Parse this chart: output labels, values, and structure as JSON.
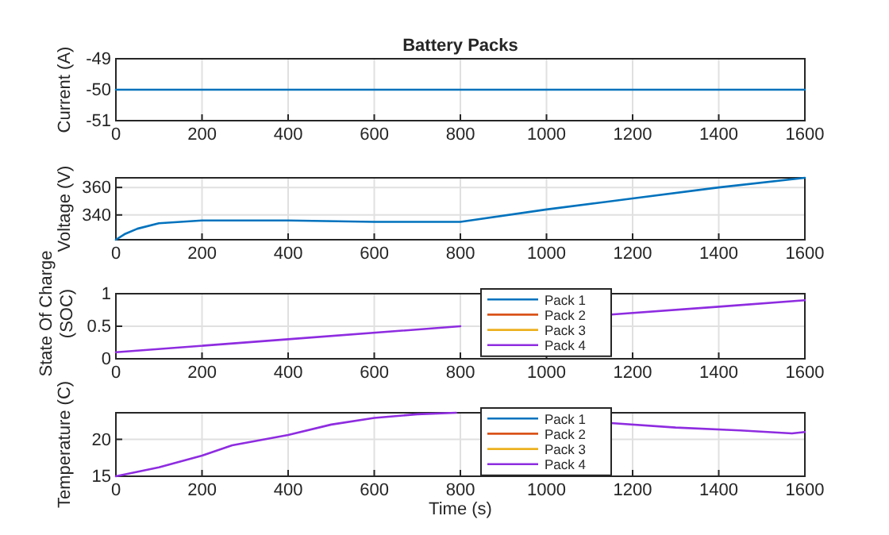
{
  "chart_data": [
    {
      "type": "line",
      "title": "Battery Packs",
      "ylabel": "Current (A)",
      "x": [
        0,
        1600
      ],
      "xlim": [
        0,
        1600
      ],
      "xticks": [
        0,
        200,
        400,
        600,
        800,
        1000,
        1200,
        1400,
        1600
      ],
      "ylim": [
        -51,
        -49
      ],
      "yticks": [
        -51,
        -50,
        -49
      ],
      "grid": true,
      "series": [
        {
          "color": "#0072bd",
          "values": [
            -50,
            -50
          ]
        }
      ]
    },
    {
      "type": "line",
      "ylabel": "Voltage (V)",
      "x": [
        0,
        20,
        50,
        100,
        150,
        200,
        400,
        600,
        800,
        1000,
        1200,
        1400,
        1600
      ],
      "xlim": [
        0,
        1600
      ],
      "xticks": [
        0,
        200,
        400,
        600,
        800,
        1000,
        1200,
        1400,
        1600
      ],
      "ylim": [
        322,
        367
      ],
      "yticks": [
        340,
        360
      ],
      "grid": true,
      "series": [
        {
          "color": "#0072bd",
          "values": [
            322,
            326,
            330,
            334,
            335,
            336,
            336,
            335,
            335,
            344,
            352,
            360,
            367
          ]
        }
      ]
    },
    {
      "type": "line",
      "ylabel": "State Of Charge (SOC)",
      "x": [
        0,
        400,
        800,
        1000,
        1150,
        1400,
        1600
      ],
      "xlim": [
        0,
        1600
      ],
      "xticks": [
        0,
        200,
        400,
        600,
        800,
        1000,
        1200,
        1400,
        1600
      ],
      "ylim": [
        0,
        1
      ],
      "yticks": [
        0,
        0.5,
        1
      ],
      "grid": true,
      "legend": "top",
      "series": [
        {
          "name": "Pack 1",
          "color": "#0072bd",
          "values": [
            null,
            null,
            null,
            null,
            null,
            null,
            null
          ]
        },
        {
          "name": "Pack 2",
          "color": "#d95319",
          "values": [
            null,
            null,
            null,
            null,
            null,
            null,
            null
          ]
        },
        {
          "name": "Pack 3",
          "color": "#edb120",
          "values": [
            null,
            null,
            null,
            null,
            null,
            null,
            null
          ]
        },
        {
          "name": "Pack 4",
          "color": "#8e2ce0",
          "values": [
            0.1,
            0.3,
            0.5,
            null,
            0.68,
            0.8,
            0.9
          ]
        }
      ]
    },
    {
      "type": "line",
      "ylabel": "Temperature (C)",
      "xlabel": "Time (s)",
      "x": [
        0,
        100,
        200,
        270,
        400,
        500,
        600,
        700,
        790,
        1000,
        1150,
        1300,
        1450,
        1570,
        1600
      ],
      "xlim": [
        0,
        1600
      ],
      "xticks": [
        0,
        200,
        400,
        600,
        800,
        1000,
        1200,
        1400,
        1600
      ],
      "ylim": [
        15,
        23.6
      ],
      "yticks": [
        15,
        20
      ],
      "grid": true,
      "legend": "top",
      "series": [
        {
          "name": "Pack 1",
          "color": "#0072bd",
          "values": [
            null,
            null,
            null,
            null,
            null,
            null,
            null,
            null,
            null,
            null,
            null,
            null,
            null,
            null,
            null
          ]
        },
        {
          "name": "Pack 2",
          "color": "#d95319",
          "values": [
            null,
            null,
            null,
            null,
            null,
            null,
            null,
            null,
            null,
            null,
            null,
            null,
            null,
            null,
            null
          ]
        },
        {
          "name": "Pack 3",
          "color": "#edb120",
          "values": [
            null,
            null,
            null,
            null,
            null,
            null,
            null,
            null,
            null,
            null,
            null,
            null,
            null,
            null,
            null
          ]
        },
        {
          "name": "Pack 4",
          "color": "#8e2ce0",
          "values": [
            15,
            16.2,
            17.8,
            19.2,
            20.6,
            22,
            22.9,
            23.4,
            23.6,
            null,
            22.2,
            21.6,
            21.2,
            20.8,
            21.0
          ]
        }
      ]
    }
  ]
}
